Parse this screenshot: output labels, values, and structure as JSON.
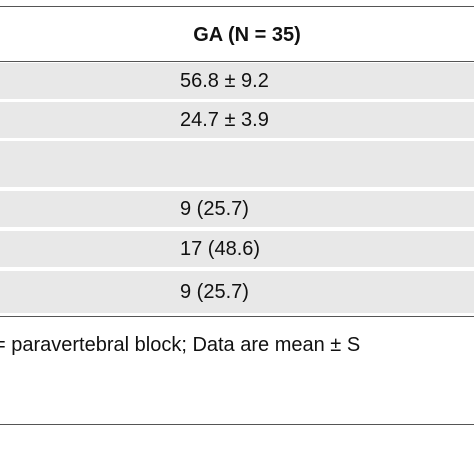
{
  "table": {
    "columns": [
      "GA (N = 35)"
    ],
    "rows": [
      [
        "56.8 ± 9.2"
      ],
      [
        "24.7 ± 3.9"
      ],
      [],
      [
        "9 (25.7)"
      ],
      [
        "17 (48.6)"
      ],
      [
        "9 (25.7)"
      ]
    ],
    "footnote": "= paravertebral block; Data are mean ± S"
  }
}
